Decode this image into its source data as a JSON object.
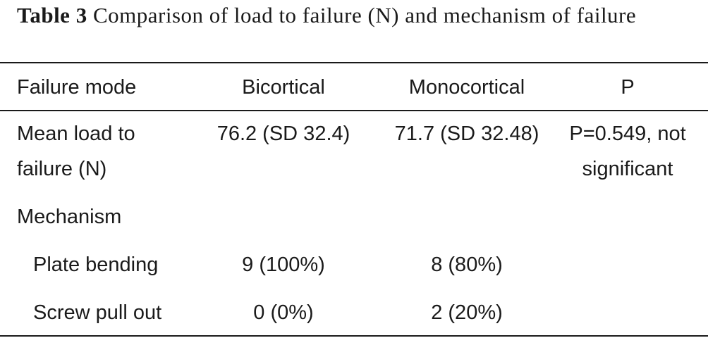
{
  "caption": {
    "label": "Table 3",
    "text": "Comparison of load to failure (N) and mechanism of failure"
  },
  "table": {
    "headers": [
      "Failure mode",
      "Bicortical",
      "Monocortical",
      "P"
    ],
    "rows": [
      {
        "label_line1": "Mean load to",
        "label_line2": "failure (N)",
        "bicortical": "76.2 (SD 32.4)",
        "monocortical": "71.7 (SD 32.48)",
        "p_line1": "P=0.549, not",
        "p_line2": "significant"
      },
      {
        "label": "Mechanism"
      },
      {
        "label": "Plate bending",
        "bicortical": "9 (100%)",
        "monocortical": "8 (80%)"
      },
      {
        "label": "Screw pull out",
        "bicortical": "0 (0%)",
        "monocortical": "2 (20%)"
      }
    ]
  }
}
